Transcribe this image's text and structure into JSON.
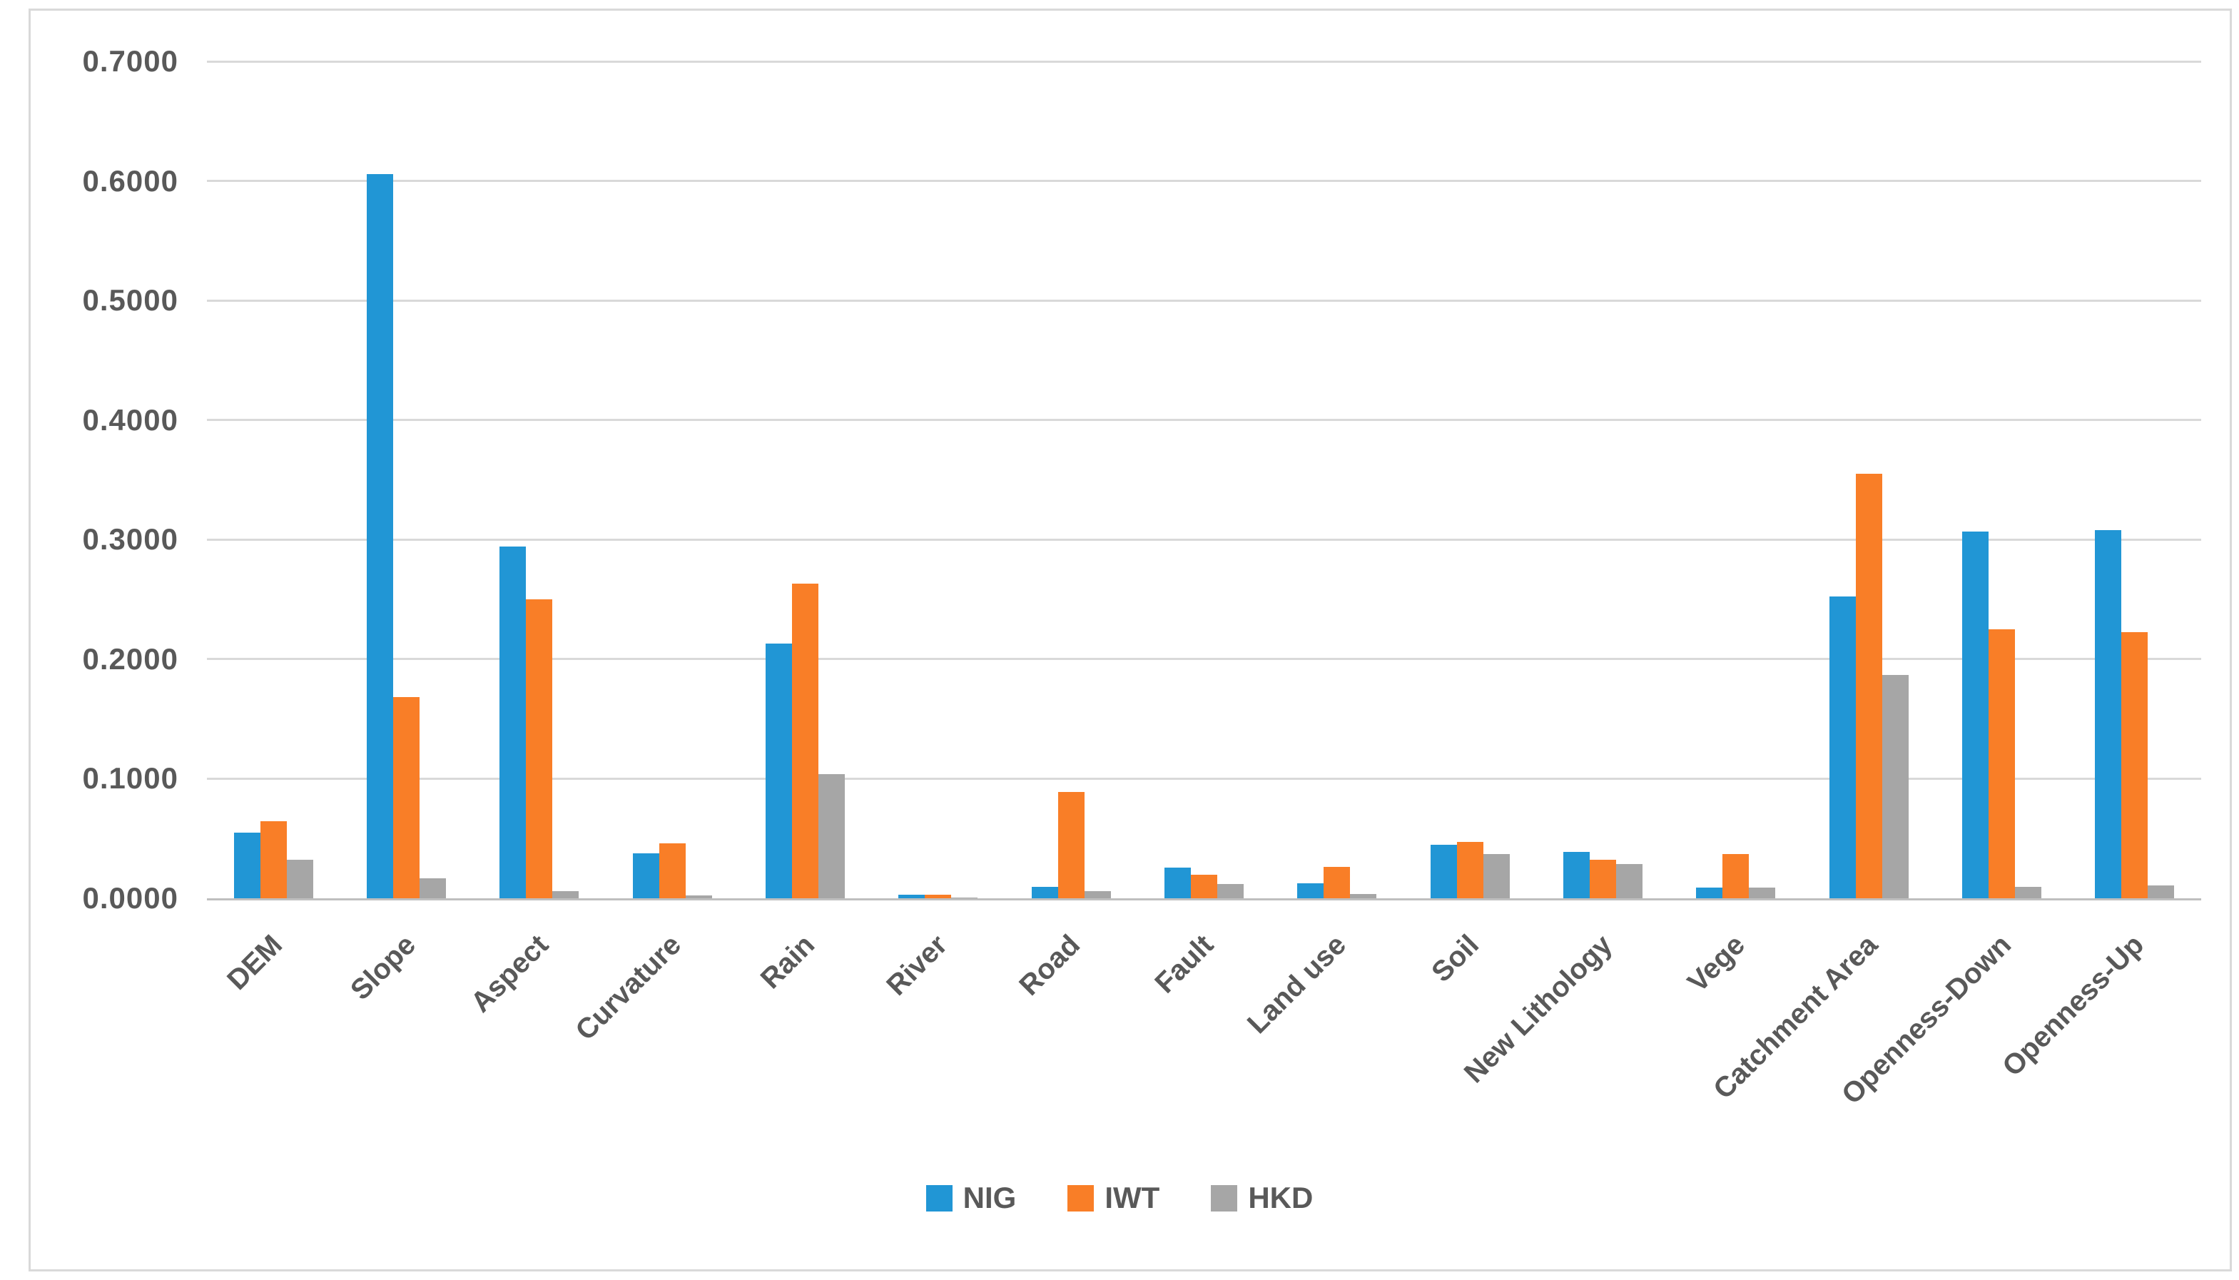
{
  "figure": {
    "background": "#ffffff",
    "border_color": "#d9d9d9"
  },
  "colors": {
    "gridline": "#d9d9d9",
    "axis_line": "#bfbfbf",
    "text": "#595959",
    "series_nig": "#2196d5",
    "series_iwt": "#f97e27",
    "series_hkd": "#a6a6a6"
  },
  "chart_data": {
    "type": "bar",
    "title": "",
    "xlabel": "",
    "ylabel": "",
    "categories": [
      "DEM",
      "Slope",
      "Aspect",
      "Curvature",
      "Rain",
      "River",
      "Road",
      "Fault",
      "Land use",
      "Soil",
      "New Lithology",
      "Vege",
      "Catchment Area",
      "Openness-Down",
      "Openness-Up"
    ],
    "series": [
      {
        "name": "NIG",
        "color": "#2196d5",
        "values": [
          0.055,
          0.606,
          0.294,
          0.0375,
          0.213,
          0.003,
          0.0095,
          0.0255,
          0.0125,
          0.045,
          0.039,
          0.009,
          0.2525,
          0.3065,
          0.308
        ]
      },
      {
        "name": "IWT",
        "color": "#f97e27",
        "values": [
          0.0645,
          0.168,
          0.25,
          0.046,
          0.263,
          0.0028,
          0.089,
          0.0195,
          0.0265,
          0.047,
          0.032,
          0.037,
          0.355,
          0.225,
          0.2225
        ]
      },
      {
        "name": "HKD",
        "color": "#a6a6a6",
        "values": [
          0.0325,
          0.0165,
          0.0058,
          0.0025,
          0.104,
          0.0006,
          0.0058,
          0.0122,
          0.0038,
          0.0368,
          0.0285,
          0.009,
          0.1865,
          0.0097,
          0.011
        ]
      }
    ],
    "ylim": [
      0,
      0.7
    ],
    "ytick_step": 0.1,
    "ytick_labels": [
      "0.0000",
      "0.1000",
      "0.2000",
      "0.3000",
      "0.4000",
      "0.5000",
      "0.6000",
      "0.7000"
    ],
    "grid": true,
    "legend_position": "bottom",
    "legend_labels": [
      "NIG",
      "IWT",
      "HKD"
    ]
  }
}
